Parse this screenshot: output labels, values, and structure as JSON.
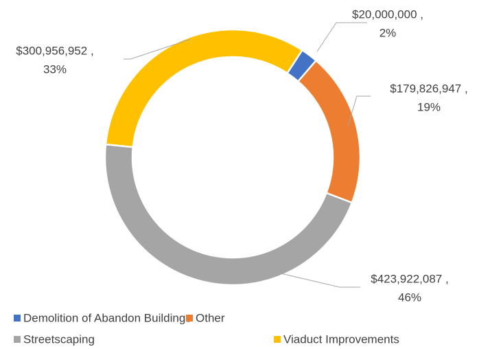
{
  "chart_data": {
    "type": "donut",
    "categories": [
      "Demolition of Abandon Buildings",
      "Other",
      "Streetscaping",
      "Viaduct Improvements"
    ],
    "values": [
      20000000,
      179826947,
      423922087,
      300956952
    ],
    "value_labels": [
      "$20,000,000 ,",
      "$179,826,947 ,",
      "$423,922,087 ,",
      "$300,956,952 ,"
    ],
    "percent_labels": [
      "2%",
      "19%",
      "46%",
      "33%"
    ],
    "colors": [
      "#4472c4",
      "#ed7d31",
      "#a5a5a5",
      "#ffc000"
    ]
  }
}
